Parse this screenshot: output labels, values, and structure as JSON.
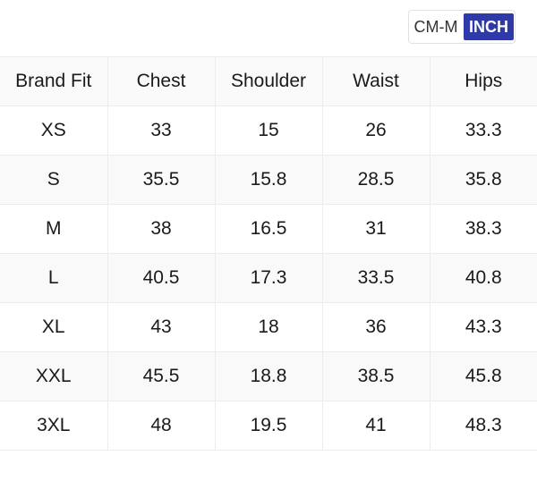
{
  "unit_toggle": {
    "options": [
      "CM-M",
      "INCH"
    ],
    "selected": "INCH",
    "active_color": "#2f3aa8"
  },
  "size_table": {
    "headers": [
      "Brand Fit",
      "Chest",
      "Shoulder",
      "Waist",
      "Hips"
    ],
    "rows": [
      [
        "XS",
        "33",
        "15",
        "26",
        "33.3"
      ],
      [
        "S",
        "35.5",
        "15.8",
        "28.5",
        "35.8"
      ],
      [
        "M",
        "38",
        "16.5",
        "31",
        "38.3"
      ],
      [
        "L",
        "40.5",
        "17.3",
        "33.5",
        "40.8"
      ],
      [
        "XL",
        "43",
        "18",
        "36",
        "43.3"
      ],
      [
        "XXL",
        "45.5",
        "18.8",
        "38.5",
        "45.8"
      ],
      [
        "3XL",
        "48",
        "19.5",
        "41",
        "48.3"
      ]
    ]
  }
}
